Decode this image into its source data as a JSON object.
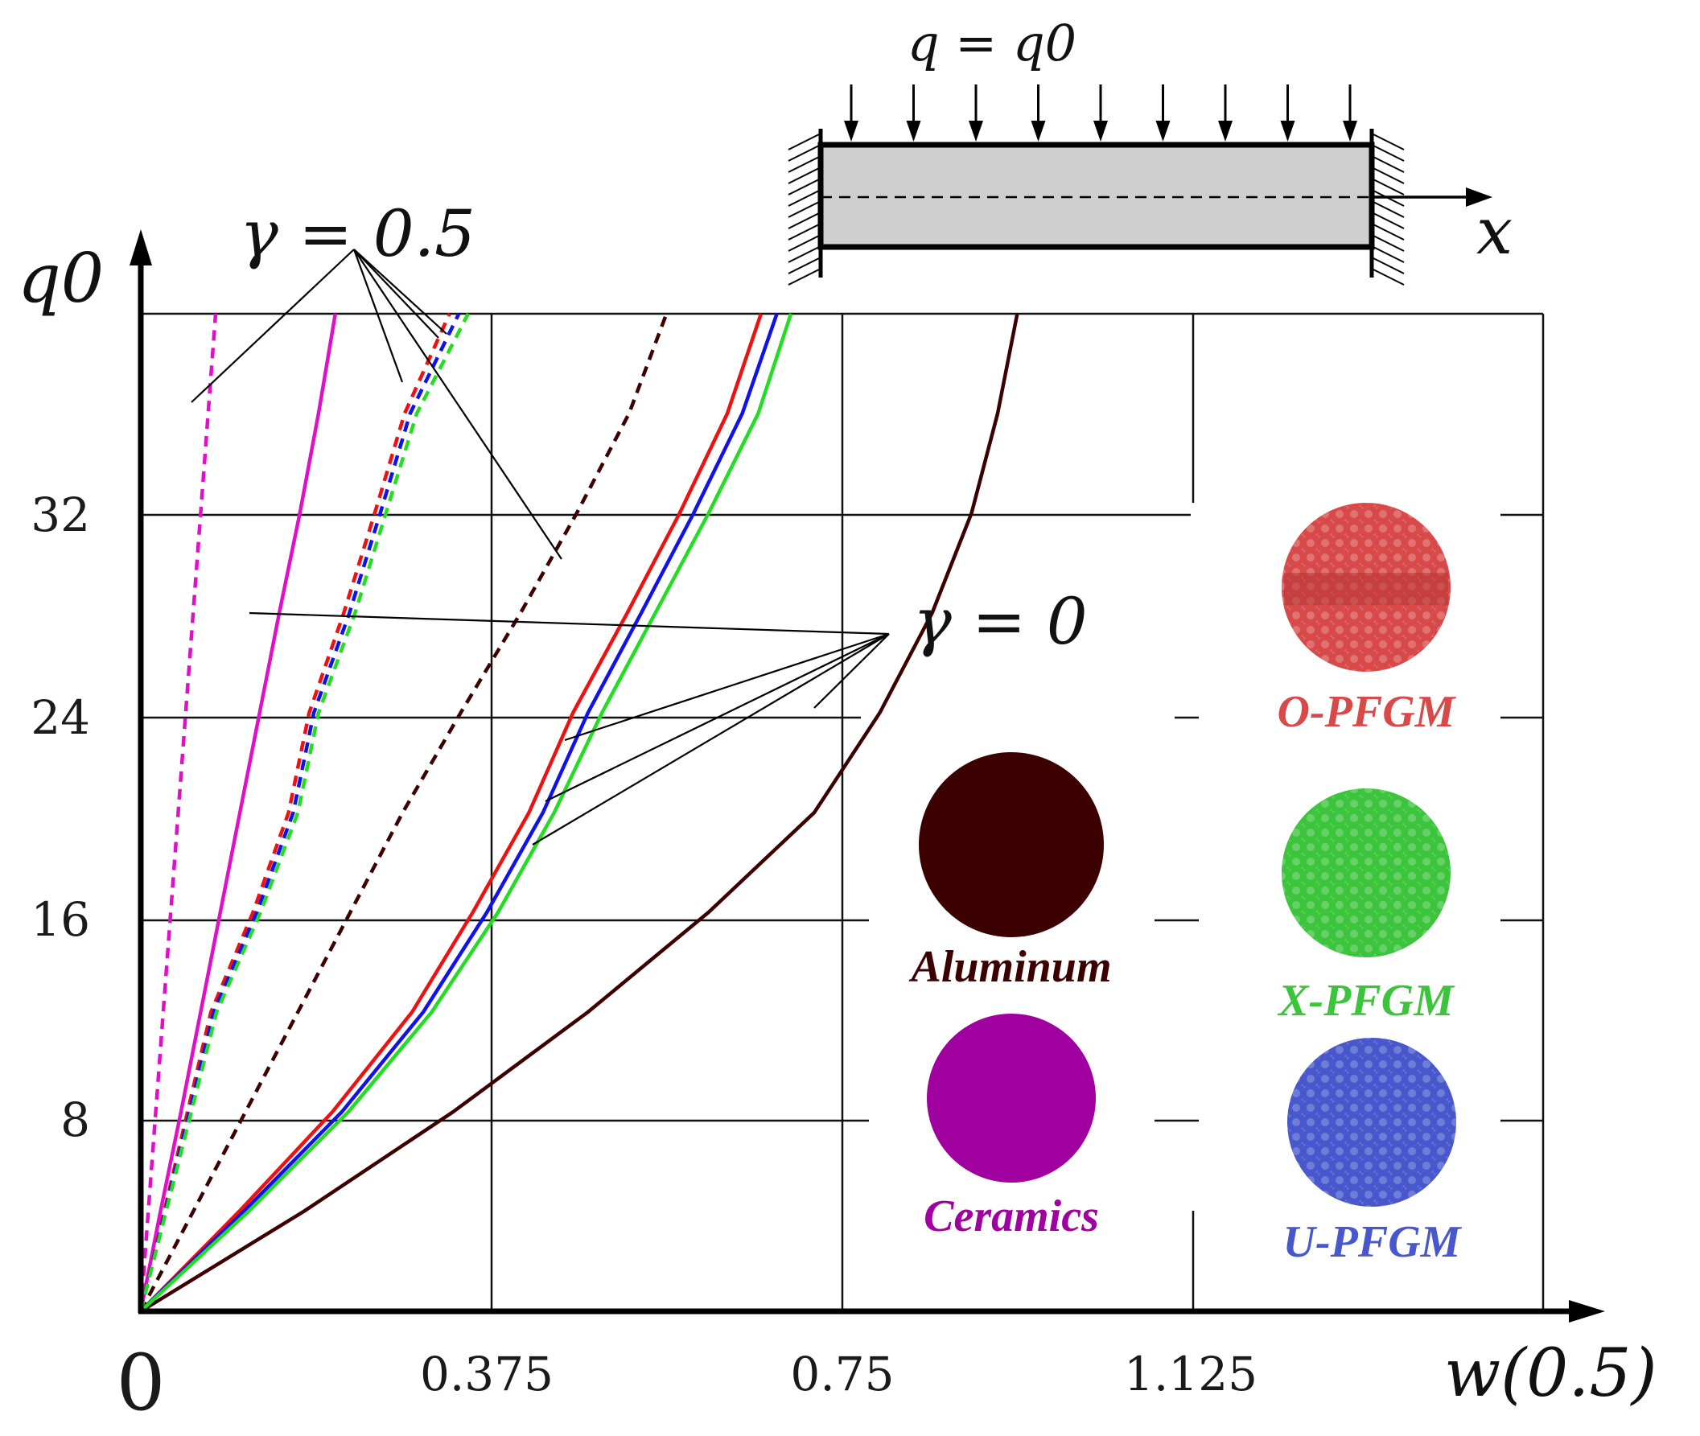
{
  "chart_data": {
    "type": "line",
    "title": "",
    "xlabel": "w(0.5)",
    "ylabel": "q0",
    "xlim": [
      0,
      1.5
    ],
    "ylim": [
      0,
      40
    ],
    "x_ticks": [
      "0",
      "0.375",
      "0.75",
      "1.125"
    ],
    "y_ticks": [
      "8",
      "16",
      "24",
      "32"
    ],
    "grid": true,
    "schematic": {
      "load_label": "q = q0",
      "axis_label": "x"
    },
    "annotations": [
      {
        "text": "γ = 0.5",
        "meaning": "dashed curves"
      },
      {
        "text": "γ = 0",
        "meaning": "solid curves"
      }
    ],
    "legend": [
      {
        "name": "Aluminum",
        "color": "#3d0000",
        "texture": "solid"
      },
      {
        "name": "Ceramics",
        "color": "#a000a0",
        "texture": "solid"
      },
      {
        "name": "O-PFGM",
        "color": "#d84a4a",
        "texture": "foam"
      },
      {
        "name": "X-PFGM",
        "color": "#3cc43c",
        "texture": "foam"
      },
      {
        "name": "U-PFGM",
        "color": "#4858cc",
        "texture": "foam"
      }
    ],
    "series": [
      {
        "name": "Ceramics, γ = 0",
        "color": "#e010c8",
        "dash": "solid",
        "points": [
          [
            0,
            0
          ],
          [
            0.021,
            4
          ],
          [
            0.043,
            8
          ],
          [
            0.064,
            12
          ],
          [
            0.085,
            16
          ],
          [
            0.106,
            20
          ],
          [
            0.127,
            24
          ],
          [
            0.148,
            28
          ],
          [
            0.17,
            32
          ],
          [
            0.19,
            36
          ],
          [
            0.208,
            40
          ]
        ]
      },
      {
        "name": "Ceramics, γ = 0.5",
        "color": "#e010c8",
        "dash": "dashed",
        "points": [
          [
            0,
            0
          ],
          [
            0.008,
            4
          ],
          [
            0.016,
            8
          ],
          [
            0.024,
            12
          ],
          [
            0.032,
            16
          ],
          [
            0.04,
            20
          ],
          [
            0.048,
            24
          ],
          [
            0.056,
            28
          ],
          [
            0.064,
            32
          ],
          [
            0.072,
            36
          ],
          [
            0.08,
            40
          ]
        ]
      },
      {
        "name": "Aluminum, γ = 0",
        "color": "#3d0000",
        "dash": "solid",
        "points": [
          [
            0,
            0
          ],
          [
            0.174,
            4
          ],
          [
            0.334,
            8
          ],
          [
            0.478,
            12
          ],
          [
            0.607,
            16
          ],
          [
            0.72,
            20
          ],
          [
            0.79,
            24
          ],
          [
            0.846,
            28
          ],
          [
            0.888,
            32
          ],
          [
            0.916,
            36
          ],
          [
            0.937,
            40
          ]
        ]
      },
      {
        "name": "Aluminum, γ = 0.5",
        "color": "#3d0000",
        "dash": "dashed",
        "points": [
          [
            0,
            0
          ],
          [
            0.056,
            4
          ],
          [
            0.112,
            8
          ],
          [
            0.168,
            12
          ],
          [
            0.224,
            16
          ],
          [
            0.28,
            20
          ],
          [
            0.342,
            24
          ],
          [
            0.406,
            28
          ],
          [
            0.466,
            32
          ],
          [
            0.522,
            36
          ],
          [
            0.562,
            40
          ]
        ]
      },
      {
        "name": "O-PFGM, γ = 0",
        "color": "#ee1111",
        "dash": "solid",
        "points": [
          [
            0,
            0
          ],
          [
            0.105,
            4
          ],
          [
            0.205,
            8
          ],
          [
            0.29,
            12
          ],
          [
            0.355,
            16
          ],
          [
            0.415,
            20
          ],
          [
            0.462,
            24
          ],
          [
            0.52,
            28
          ],
          [
            0.576,
            32
          ],
          [
            0.627,
            36
          ],
          [
            0.663,
            40
          ]
        ]
      },
      {
        "name": "U-PFGM, γ = 0",
        "color": "#1111ee",
        "dash": "solid",
        "points": [
          [
            0,
            0
          ],
          [
            0.11,
            4
          ],
          [
            0.215,
            8
          ],
          [
            0.302,
            12
          ],
          [
            0.37,
            16
          ],
          [
            0.43,
            20
          ],
          [
            0.478,
            24
          ],
          [
            0.535,
            28
          ],
          [
            0.591,
            32
          ],
          [
            0.643,
            36
          ],
          [
            0.68,
            40
          ]
        ]
      },
      {
        "name": "X-PFGM, γ = 0",
        "color": "#22dd22",
        "dash": "solid",
        "points": [
          [
            0,
            0
          ],
          [
            0.115,
            4
          ],
          [
            0.222,
            8
          ],
          [
            0.311,
            12
          ],
          [
            0.382,
            16
          ],
          [
            0.442,
            20
          ],
          [
            0.493,
            24
          ],
          [
            0.55,
            28
          ],
          [
            0.607,
            32
          ],
          [
            0.66,
            36
          ],
          [
            0.695,
            40
          ]
        ]
      },
      {
        "name": "O-PFGM, γ = 0.5",
        "color": "#ee1111",
        "dash": "dashed",
        "points": [
          [
            0,
            0
          ],
          [
            0.025,
            4
          ],
          [
            0.05,
            8
          ],
          [
            0.075,
            12
          ],
          [
            0.12,
            16
          ],
          [
            0.158,
            20
          ],
          [
            0.18,
            24
          ],
          [
            0.217,
            28
          ],
          [
            0.25,
            32
          ],
          [
            0.282,
            36
          ],
          [
            0.33,
            40
          ]
        ]
      },
      {
        "name": "U-PFGM, γ = 0.5",
        "color": "#1111ee",
        "dash": "dashed",
        "points": [
          [
            0,
            0
          ],
          [
            0.026,
            4
          ],
          [
            0.052,
            8
          ],
          [
            0.078,
            12
          ],
          [
            0.124,
            16
          ],
          [
            0.163,
            20
          ],
          [
            0.185,
            24
          ],
          [
            0.223,
            28
          ],
          [
            0.256,
            32
          ],
          [
            0.288,
            36
          ],
          [
            0.34,
            40
          ]
        ]
      },
      {
        "name": "X-PFGM, γ = 0.5",
        "color": "#22dd22",
        "dash": "dashed",
        "points": [
          [
            0,
            0
          ],
          [
            0.027,
            4
          ],
          [
            0.054,
            8
          ],
          [
            0.081,
            12
          ],
          [
            0.128,
            16
          ],
          [
            0.168,
            20
          ],
          [
            0.19,
            24
          ],
          [
            0.229,
            28
          ],
          [
            0.262,
            32
          ],
          [
            0.295,
            36
          ],
          [
            0.35,
            40
          ]
        ]
      }
    ]
  }
}
